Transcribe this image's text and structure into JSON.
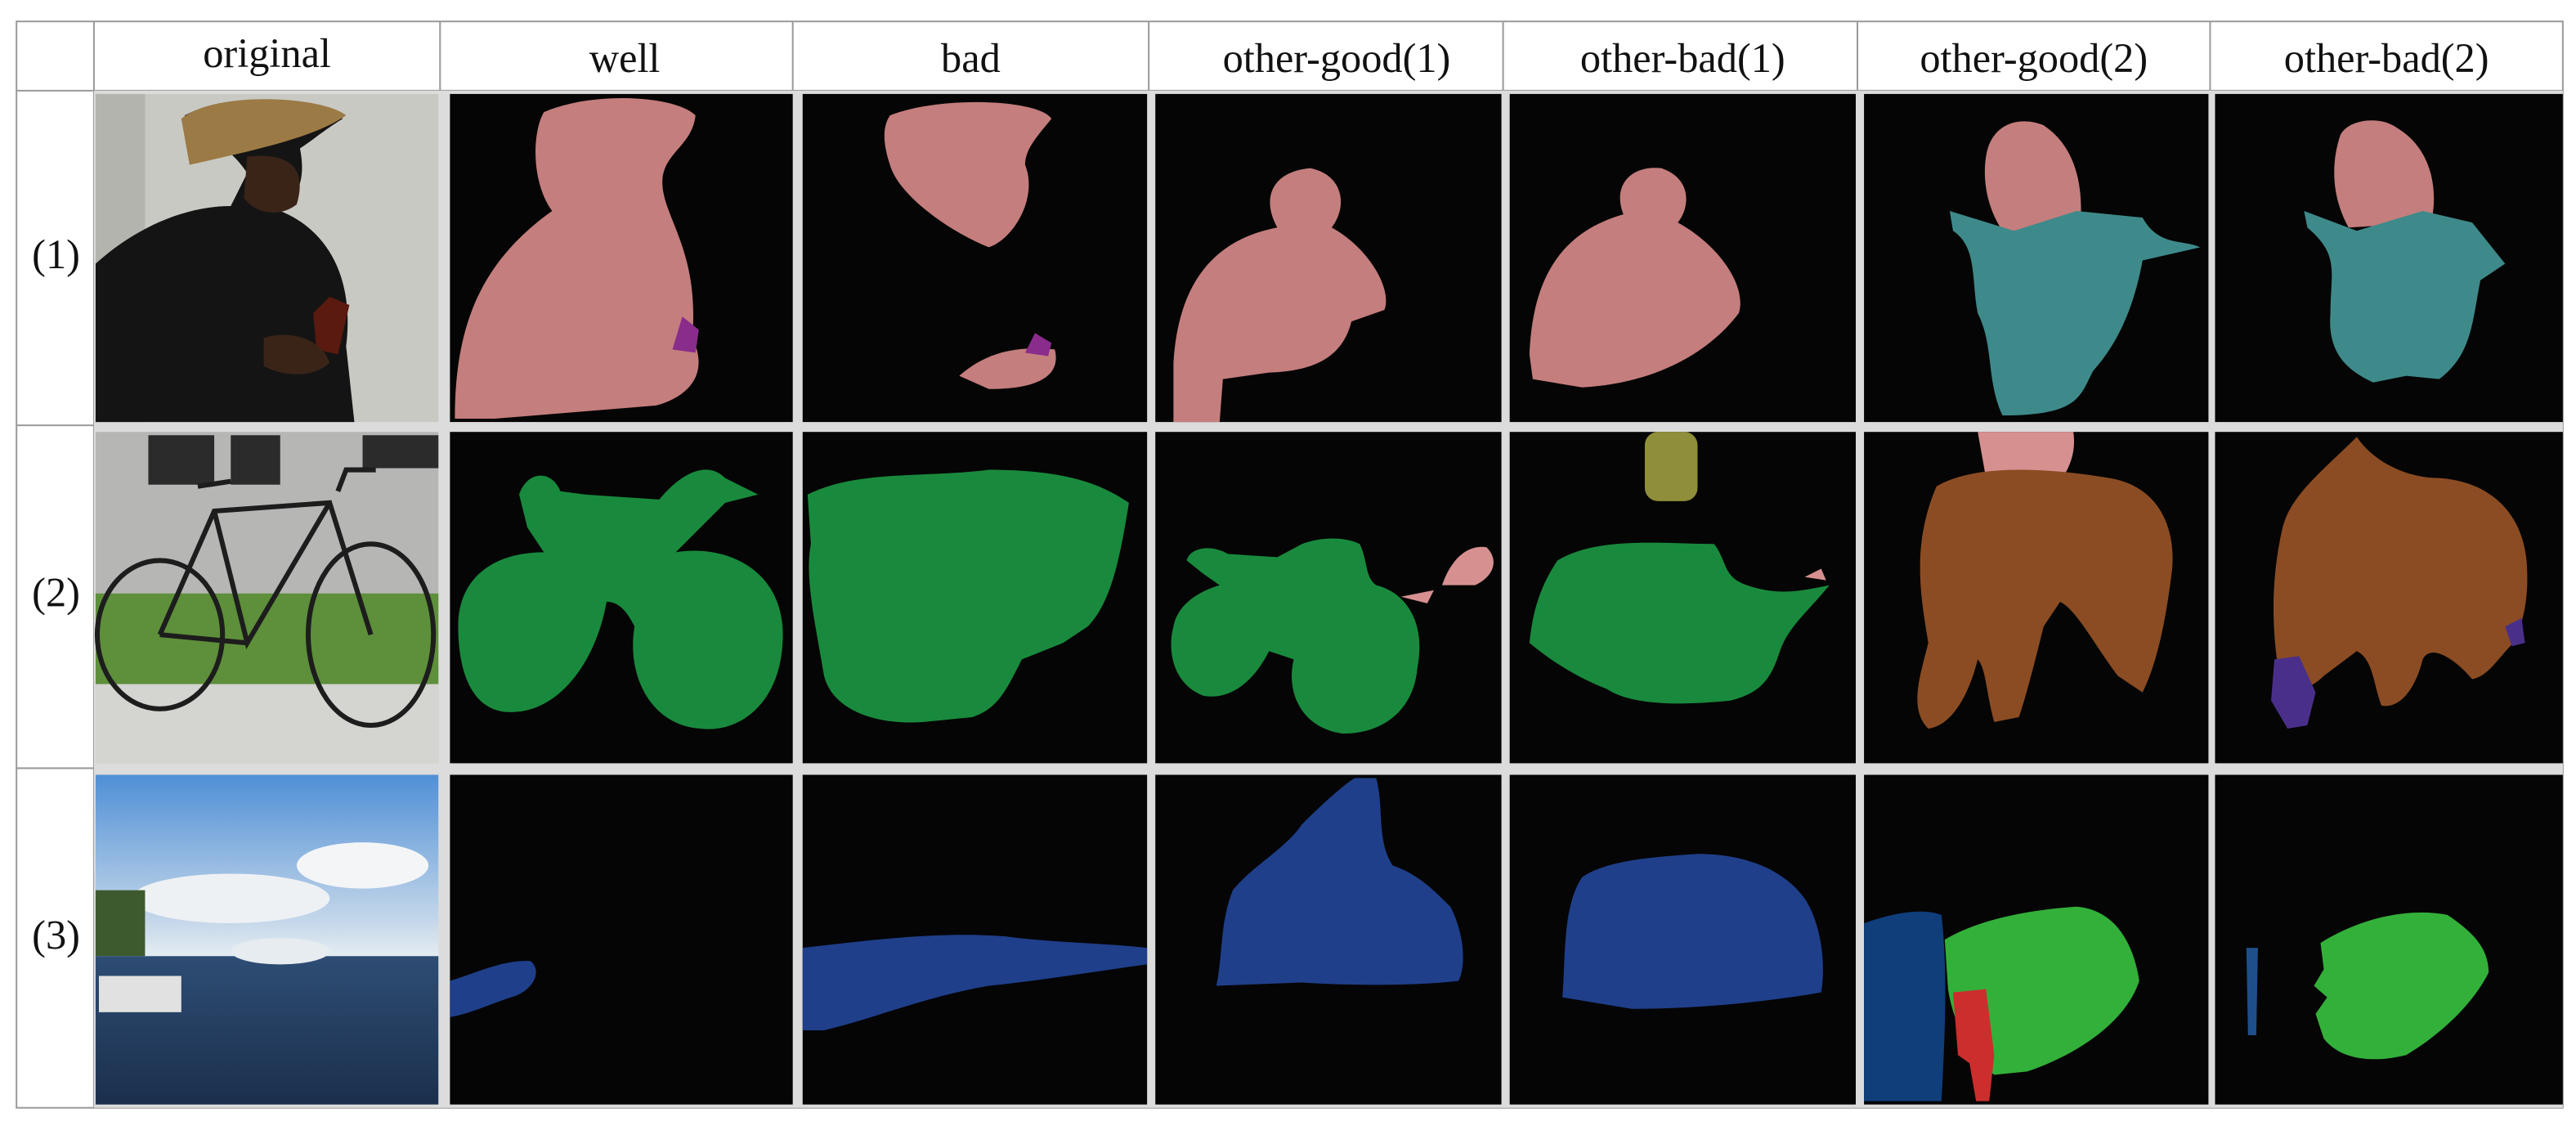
{
  "columns": [
    "original",
    "well",
    "bad",
    "other-good(1)",
    "other-bad(1)",
    "other-good(2)",
    "other-bad(2)"
  ],
  "row_labels": [
    "(1)",
    "(2)",
    "(3)"
  ]
}
